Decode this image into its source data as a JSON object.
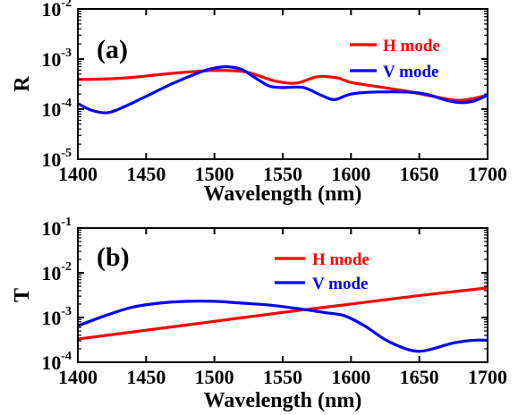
{
  "chart_data": [
    {
      "type": "line",
      "panel_label": "(a)",
      "xlabel": "Wavelength (nm)",
      "ylabel": "R",
      "xlim": [
        1400,
        1700
      ],
      "ylim": [
        1e-05,
        0.01
      ],
      "yscale": "log",
      "x_ticks": [
        "1400",
        "1450",
        "1500",
        "1550",
        "1600",
        "1650",
        "1700"
      ],
      "y_ticks": [
        {
          "base": "10",
          "exp": "-5"
        },
        {
          "base": "10",
          "exp": "-4"
        },
        {
          "base": "10",
          "exp": "-3"
        },
        {
          "base": "10",
          "exp": "-2"
        }
      ],
      "legend_position": "top-right",
      "series": [
        {
          "name": "H mode",
          "color": "#ff0000",
          "x": [
            1400,
            1420,
            1440,
            1460,
            1480,
            1500,
            1520,
            1530,
            1545,
            1560,
            1575,
            1590,
            1600,
            1620,
            1640,
            1660,
            1680,
            1700
          ],
          "y": [
            0.00039,
            0.0004,
            0.00043,
            0.00049,
            0.00055,
            0.00059,
            0.00057,
            0.00049,
            0.00036,
            0.00033,
            0.00044,
            0.00042,
            0.00034,
            0.00028,
            0.00023,
            0.00018,
            0.00015,
            0.00019
          ]
        },
        {
          "name": "V mode",
          "color": "#0000ff",
          "x": [
            1400,
            1410,
            1422,
            1435,
            1450,
            1470,
            1490,
            1500,
            1510,
            1520,
            1530,
            1540,
            1550,
            1565,
            1578,
            1588,
            1600,
            1620,
            1650,
            1670,
            1680,
            1690,
            1700
          ],
          "y": [
            0.00013,
            9.5e-05,
            8.5e-05,
            0.000115,
            0.00018,
            0.00033,
            0.00055,
            0.00066,
            0.0007,
            0.00062,
            0.00042,
            0.00029,
            0.00027,
            0.00027,
            0.00019,
            0.000155,
            0.0002,
            0.00022,
            0.00021,
            0.00015,
            0.000135,
            0.000145,
            0.00019
          ]
        }
      ]
    },
    {
      "type": "line",
      "panel_label": "(b)",
      "xlabel": "Wavelength (nm)",
      "ylabel": "T",
      "xlim": [
        1400,
        1700
      ],
      "ylim": [
        0.0001,
        0.1
      ],
      "yscale": "log",
      "x_ticks": [
        "1400",
        "1450",
        "1500",
        "1550",
        "1600",
        "1650",
        "1700"
      ],
      "y_ticks": [
        {
          "base": "10",
          "exp": "-4"
        },
        {
          "base": "10",
          "exp": "-3"
        },
        {
          "base": "10",
          "exp": "-2"
        },
        {
          "base": "10",
          "exp": "-1"
        }
      ],
      "legend_position": "top-right",
      "series": [
        {
          "name": "H mode",
          "color": "#ff0000",
          "x": [
            1400,
            1450,
            1500,
            1550,
            1600,
            1650,
            1700
          ],
          "y": [
            0.00033,
            0.00052,
            0.00082,
            0.0013,
            0.002,
            0.0031,
            0.0046
          ]
        },
        {
          "name": "V mode",
          "color": "#0000ff",
          "x": [
            1400,
            1420,
            1440,
            1460,
            1480,
            1500,
            1520,
            1540,
            1560,
            1580,
            1595,
            1610,
            1625,
            1640,
            1650,
            1660,
            1675,
            1690,
            1700
          ],
          "y": [
            0.00065,
            0.0011,
            0.0017,
            0.0021,
            0.0023,
            0.0023,
            0.0021,
            0.0019,
            0.0016,
            0.0013,
            0.0011,
            0.00065,
            0.00032,
            0.0002,
            0.000175,
            0.0002,
            0.00027,
            0.00031,
            0.00031
          ]
        }
      ]
    }
  ]
}
